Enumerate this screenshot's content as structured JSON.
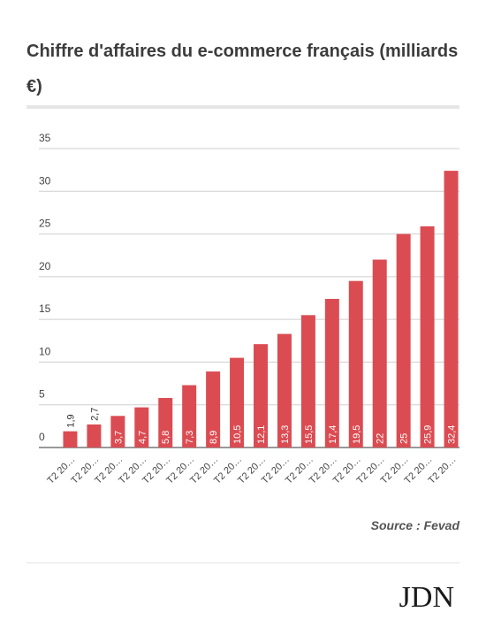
{
  "title": "Chiffre d'affaires du e-commerce français (milliards €)",
  "source": "Source : Fevad",
  "logo": "JDN",
  "colors": {
    "bar": "#db4c52",
    "grid": "#cfcfcf",
    "text": "#333333"
  },
  "chart_data": {
    "type": "bar",
    "title": "Chiffre d'affaires du e-commerce français (milliards €)",
    "xlabel": "",
    "ylabel": "",
    "ylim": [
      0,
      35
    ],
    "yticks": [
      0,
      5,
      10,
      15,
      20,
      25,
      30,
      35
    ],
    "grid": true,
    "categories": [
      "T2 20…",
      "T2 20…",
      "T2 20…",
      "T2 20…",
      "T2 20…",
      "T2 20…",
      "T2 20…",
      "T2 20…",
      "T2 20…",
      "T2 20…",
      "T2 20…",
      "T2 20…",
      "T2 20…",
      "T2 20…",
      "T2 20…",
      "T2 20…",
      "T2 20…"
    ],
    "values": [
      1.9,
      2.7,
      3.7,
      4.7,
      5.8,
      7.3,
      8.9,
      10.5,
      12.1,
      13.3,
      15.5,
      17.4,
      19.5,
      22,
      25,
      25.9,
      32.4
    ],
    "data_labels": [
      "1,9",
      "2,7",
      "3,7",
      "4,7",
      "5,8",
      "7,3",
      "8,9",
      "10,5",
      "12,1",
      "13,3",
      "15,5",
      "17,4",
      "19,5",
      "22",
      "25",
      "25,9",
      "32,4"
    ]
  }
}
